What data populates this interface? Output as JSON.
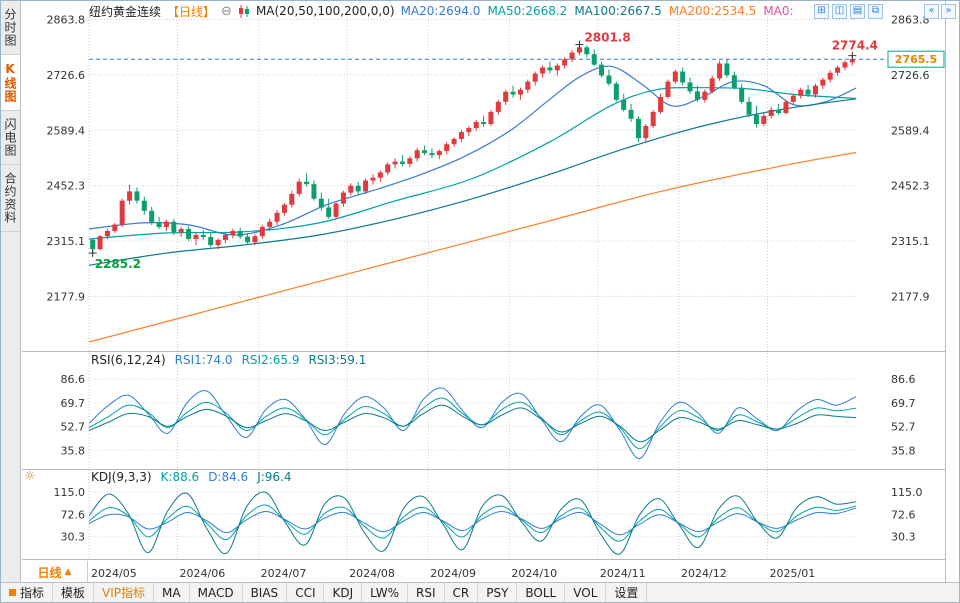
{
  "header": {
    "title": "纽约黄金连续",
    "period_tag": "【日线】",
    "ma_label": "MA(20,50,100,200,0,0)",
    "ma_values": [
      {
        "label": "MA20:2694.0",
        "color": "#3a7bd5"
      },
      {
        "label": "MA50:2668.2",
        "color": "#00a2a2"
      },
      {
        "label": "MA100:2667.5",
        "color": "#0b7a8a"
      },
      {
        "label": "MA200:2534.5",
        "color": "#ff7f27"
      },
      {
        "label": "MA0:",
        "color": "#e64ca6"
      }
    ],
    "layout_icons": [
      {
        "name": "grid-layout-icon",
        "glyph": "⊞"
      },
      {
        "name": "dual-pane-icon",
        "glyph": "◫"
      },
      {
        "name": "horizontal-panes-icon",
        "glyph": "▤"
      },
      {
        "name": "popup-window-icon",
        "glyph": "⧉"
      }
    ],
    "corner_icons": [
      {
        "name": "scroll-left-icon",
        "glyph": "«"
      },
      {
        "name": "scroll-right-icon",
        "glyph": "»"
      }
    ]
  },
  "icons": {
    "zoom_out": "⊖",
    "settings": "☼",
    "period_arrow": "▲"
  },
  "sidebar": {
    "items": [
      {
        "name": "time-chart",
        "label": "分时图",
        "selected": false
      },
      {
        "name": "kline-chart",
        "label": "K线图",
        "selected": true
      },
      {
        "name": "flash-chart",
        "label": "闪电图",
        "selected": false
      },
      {
        "name": "contract-info",
        "label": "合约资料",
        "selected": false
      }
    ]
  },
  "bottom": {
    "period_label": "日线",
    "tabs": [
      {
        "label": "指标",
        "icon": "orange-square-icon",
        "selected": true
      },
      {
        "label": "模板"
      },
      {
        "label": "VIP指标",
        "highlight": true
      },
      {
        "label": "MA"
      },
      {
        "label": "MACD"
      },
      {
        "label": "BIAS"
      },
      {
        "label": "CCI"
      },
      {
        "label": "KDJ"
      },
      {
        "label": "LW%"
      },
      {
        "label": "RSI"
      },
      {
        "label": "CR"
      },
      {
        "label": "PSY"
      },
      {
        "label": "BOLL"
      },
      {
        "label": "VOL"
      },
      {
        "label": "设置"
      }
    ]
  },
  "chart_data": {
    "type": "candlestick",
    "title": "纽约黄金连续 日线",
    "up_color": "#e0393e",
    "down_color": "#0d9e6e",
    "last_price": 2765.5,
    "price_axis": {
      "ticks": [
        2863.8,
        2726.6,
        2589.4,
        2452.3,
        2315.1,
        2177.9
      ],
      "range": [
        2055,
        2885
      ]
    },
    "months": [
      {
        "label": "2024/05",
        "index": 0
      },
      {
        "label": "2024/06",
        "index": 12
      },
      {
        "label": "2024/07",
        "index": 23
      },
      {
        "label": "2024/08",
        "index": 35
      },
      {
        "label": "2024/09",
        "index": 46
      },
      {
        "label": "2024/10",
        "index": 57
      },
      {
        "label": "2024/11",
        "index": 69
      },
      {
        "label": "2024/12",
        "index": 80
      },
      {
        "label": "2025/01",
        "index": 92
      }
    ],
    "annotations": {
      "peak": {
        "label": "2801.8",
        "index": 66,
        "color": "#e0393e"
      },
      "trough": {
        "label": "2285.2",
        "index": 0,
        "color": "#00a03c"
      },
      "latest_high": {
        "label": "2774.4",
        "color": "#e0393e"
      },
      "last_price_label": "2765.5",
      "price_box_border": "#00a2a2",
      "price_box_text": "#f08000",
      "dashed_line_color": "#2f7ed8"
    },
    "candles": [
      [
        2318,
        2322,
        2285.2,
        2295
      ],
      [
        2295,
        2330,
        2292,
        2327
      ],
      [
        2327,
        2345,
        2320,
        2340
      ],
      [
        2340,
        2360,
        2335,
        2356
      ],
      [
        2356,
        2420,
        2350,
        2415
      ],
      [
        2415,
        2454,
        2405,
        2438
      ],
      [
        2438,
        2448,
        2408,
        2415
      ],
      [
        2415,
        2425,
        2380,
        2390
      ],
      [
        2390,
        2400,
        2355,
        2362
      ],
      [
        2362,
        2375,
        2345,
        2350
      ],
      [
        2350,
        2368,
        2340,
        2363
      ],
      [
        2363,
        2370,
        2330,
        2336
      ],
      [
        2336,
        2350,
        2325,
        2345
      ],
      [
        2345,
        2352,
        2315,
        2320
      ],
      [
        2320,
        2338,
        2305,
        2330
      ],
      [
        2330,
        2342,
        2318,
        2325
      ],
      [
        2325,
        2336,
        2300,
        2305
      ],
      [
        2305,
        2322,
        2295,
        2318
      ],
      [
        2318,
        2335,
        2310,
        2330
      ],
      [
        2330,
        2345,
        2322,
        2340
      ],
      [
        2340,
        2348,
        2320,
        2326
      ],
      [
        2326,
        2335,
        2308,
        2312
      ],
      [
        2312,
        2332,
        2305,
        2327
      ],
      [
        2327,
        2355,
        2320,
        2350
      ],
      [
        2350,
        2370,
        2340,
        2363
      ],
      [
        2363,
        2392,
        2355,
        2385
      ],
      [
        2385,
        2410,
        2378,
        2405
      ],
      [
        2405,
        2440,
        2398,
        2432
      ],
      [
        2432,
        2470,
        2425,
        2462
      ],
      [
        2462,
        2483,
        2450,
        2456
      ],
      [
        2456,
        2465,
        2415,
        2420
      ],
      [
        2420,
        2435,
        2390,
        2398
      ],
      [
        2398,
        2420,
        2370,
        2375
      ],
      [
        2375,
        2412,
        2368,
        2408
      ],
      [
        2408,
        2440,
        2400,
        2435
      ],
      [
        2435,
        2458,
        2428,
        2452
      ],
      [
        2452,
        2462,
        2430,
        2438
      ],
      [
        2438,
        2470,
        2432,
        2465
      ],
      [
        2465,
        2480,
        2455,
        2472
      ],
      [
        2472,
        2490,
        2462,
        2485
      ],
      [
        2485,
        2510,
        2478,
        2505
      ],
      [
        2505,
        2520,
        2495,
        2512
      ],
      [
        2512,
        2528,
        2500,
        2506
      ],
      [
        2506,
        2525,
        2498,
        2520
      ],
      [
        2520,
        2546,
        2512,
        2540
      ],
      [
        2540,
        2552,
        2528,
        2533
      ],
      [
        2533,
        2545,
        2520,
        2528
      ],
      [
        2528,
        2542,
        2518,
        2538
      ],
      [
        2538,
        2560,
        2530,
        2555
      ],
      [
        2555,
        2572,
        2548,
        2568
      ],
      [
        2568,
        2590,
        2560,
        2585
      ],
      [
        2585,
        2600,
        2575,
        2595
      ],
      [
        2595,
        2615,
        2588,
        2610
      ],
      [
        2610,
        2625,
        2598,
        2605
      ],
      [
        2605,
        2640,
        2600,
        2635
      ],
      [
        2635,
        2665,
        2628,
        2660
      ],
      [
        2660,
        2690,
        2652,
        2685
      ],
      [
        2685,
        2700,
        2670,
        2678
      ],
      [
        2678,
        2695,
        2665,
        2690
      ],
      [
        2690,
        2715,
        2682,
        2710
      ],
      [
        2710,
        2735,
        2700,
        2730
      ],
      [
        2730,
        2750,
        2720,
        2745
      ],
      [
        2745,
        2760,
        2730,
        2738
      ],
      [
        2738,
        2755,
        2725,
        2750
      ],
      [
        2750,
        2770,
        2742,
        2765
      ],
      [
        2765,
        2788,
        2758,
        2782
      ],
      [
        2782,
        2801.8,
        2775,
        2795
      ],
      [
        2795,
        2800,
        2770,
        2778
      ],
      [
        2778,
        2790,
        2748,
        2752
      ],
      [
        2752,
        2760,
        2720,
        2725
      ],
      [
        2725,
        2740,
        2700,
        2705
      ],
      [
        2705,
        2710,
        2660,
        2665
      ],
      [
        2665,
        2680,
        2636,
        2640
      ],
      [
        2640,
        2655,
        2610,
        2618
      ],
      [
        2618,
        2625,
        2560,
        2570
      ],
      [
        2570,
        2605,
        2562,
        2600
      ],
      [
        2600,
        2640,
        2595,
        2635
      ],
      [
        2635,
        2680,
        2630,
        2672
      ],
      [
        2672,
        2715,
        2668,
        2710
      ],
      [
        2710,
        2740,
        2705,
        2735
      ],
      [
        2735,
        2745,
        2700,
        2708
      ],
      [
        2708,
        2720,
        2680,
        2686
      ],
      [
        2686,
        2700,
        2660,
        2665
      ],
      [
        2665,
        2690,
        2658,
        2685
      ],
      [
        2685,
        2725,
        2680,
        2718
      ],
      [
        2718,
        2762,
        2712,
        2755
      ],
      [
        2755,
        2765,
        2720,
        2726
      ],
      [
        2726,
        2735,
        2690,
        2695
      ],
      [
        2695,
        2705,
        2655,
        2660
      ],
      [
        2660,
        2672,
        2622,
        2628
      ],
      [
        2628,
        2650,
        2596,
        2605
      ],
      [
        2605,
        2632,
        2600,
        2625
      ],
      [
        2625,
        2648,
        2618,
        2640
      ],
      [
        2640,
        2655,
        2628,
        2632
      ],
      [
        2632,
        2665,
        2630,
        2660
      ],
      [
        2660,
        2680,
        2652,
        2675
      ],
      [
        2675,
        2695,
        2668,
        2690
      ],
      [
        2690,
        2702,
        2672,
        2678
      ],
      [
        2678,
        2705,
        2670,
        2700
      ],
      [
        2700,
        2720,
        2692,
        2715
      ],
      [
        2715,
        2738,
        2708,
        2732
      ],
      [
        2732,
        2750,
        2725,
        2745
      ],
      [
        2745,
        2762,
        2738,
        2758
      ],
      [
        2758,
        2774.4,
        2750,
        2765.5
      ]
    ],
    "ma_lines": [
      {
        "name": "MA20",
        "color": "#3a7bd5",
        "points": [
          [
            0,
            2345
          ],
          [
            0.07,
            2360
          ],
          [
            0.13,
            2355
          ],
          [
            0.19,
            2330
          ],
          [
            0.25,
            2355
          ],
          [
            0.31,
            2405
          ],
          [
            0.37,
            2440
          ],
          [
            0.43,
            2478
          ],
          [
            0.49,
            2525
          ],
          [
            0.55,
            2590
          ],
          [
            0.6,
            2665
          ],
          [
            0.64,
            2722
          ],
          [
            0.68,
            2748
          ],
          [
            0.72,
            2705
          ],
          [
            0.76,
            2650
          ],
          [
            0.8,
            2672
          ],
          [
            0.84,
            2710
          ],
          [
            0.88,
            2700
          ],
          [
            0.92,
            2652
          ],
          [
            0.96,
            2660
          ],
          [
            1,
            2694
          ]
        ]
      },
      {
        "name": "MA50",
        "color": "#00a2a2",
        "points": [
          [
            0,
            2320
          ],
          [
            0.1,
            2335
          ],
          [
            0.2,
            2338
          ],
          [
            0.3,
            2360
          ],
          [
            0.4,
            2415
          ],
          [
            0.5,
            2470
          ],
          [
            0.6,
            2560
          ],
          [
            0.68,
            2650
          ],
          [
            0.74,
            2690
          ],
          [
            0.8,
            2695
          ],
          [
            0.86,
            2692
          ],
          [
            0.92,
            2678
          ],
          [
            1,
            2668.2
          ]
        ]
      },
      {
        "name": "MA100",
        "color": "#0b7a8a",
        "points": [
          [
            0,
            2255
          ],
          [
            0.1,
            2285
          ],
          [
            0.2,
            2305
          ],
          [
            0.3,
            2330
          ],
          [
            0.4,
            2370
          ],
          [
            0.5,
            2420
          ],
          [
            0.6,
            2480
          ],
          [
            0.7,
            2545
          ],
          [
            0.8,
            2600
          ],
          [
            0.9,
            2640
          ],
          [
            1,
            2667.5
          ]
        ]
      },
      {
        "name": "MA200",
        "color": "#ff7f27",
        "points": [
          [
            0,
            2065
          ],
          [
            0.15,
            2140
          ],
          [
            0.3,
            2215
          ],
          [
            0.45,
            2290
          ],
          [
            0.6,
            2365
          ],
          [
            0.75,
            2440
          ],
          [
            0.9,
            2500
          ],
          [
            1,
            2534.5
          ]
        ]
      }
    ],
    "rsi": {
      "label": "RSI(6,12,24)",
      "range": [
        24,
        98
      ],
      "ticks": [
        86.6,
        69.7,
        52.7,
        35.8
      ],
      "series": [
        {
          "name": "RSI1",
          "label": "RSI1:74.0",
          "color": "#2f7ed8",
          "values": [
            55,
            68,
            75,
            62,
            48,
            70,
            78,
            60,
            45,
            65,
            72,
            58,
            40,
            62,
            74,
            66,
            50,
            72,
            80,
            64,
            52,
            70,
            76,
            58,
            42,
            60,
            68,
            50,
            30,
            55,
            70,
            62,
            48,
            66,
            58,
            50,
            64,
            72,
            68,
            74
          ]
        },
        {
          "name": "RSI2",
          "label": "RSI2:65.9",
          "color": "#00a2a2",
          "values": [
            52,
            60,
            68,
            63,
            52,
            63,
            70,
            62,
            50,
            60,
            66,
            58,
            47,
            58,
            67,
            62,
            53,
            66,
            73,
            62,
            54,
            65,
            70,
            59,
            47,
            57,
            63,
            52,
            37,
            52,
            64,
            59,
            50,
            61,
            56,
            51,
            59,
            66,
            64,
            65.9
          ]
        },
        {
          "name": "RSI3",
          "label": "RSI3:59.1",
          "color": "#0b7a8a",
          "values": [
            50,
            56,
            62,
            60,
            53,
            60,
            65,
            60,
            52,
            57,
            62,
            57,
            50,
            56,
            62,
            59,
            53,
            62,
            68,
            60,
            54,
            61,
            66,
            58,
            49,
            55,
            60,
            53,
            42,
            50,
            59,
            56,
            51,
            57,
            54,
            51,
            55,
            61,
            60,
            59.1
          ]
        }
      ]
    },
    "kdj": {
      "label": "KDJ(9,3,3)",
      "range": [
        -10,
        130
      ],
      "ticks": [
        115.0,
        72.6,
        30.3
      ],
      "series": [
        {
          "name": "K",
          "label": "K:88.6",
          "color": "#00a2a2",
          "values": [
            60,
            85,
            70,
            30,
            65,
            88,
            55,
            25,
            70,
            90,
            60,
            35,
            75,
            85,
            50,
            28,
            68,
            86,
            58,
            30,
            72,
            88,
            62,
            38,
            70,
            84,
            48,
            22,
            60,
            82,
            55,
            30,
            66,
            85,
            58,
            40,
            70,
            86,
            80,
            88.6
          ]
        },
        {
          "name": "D",
          "label": "D:84.6",
          "color": "#2f7ed8",
          "values": [
            55,
            72,
            68,
            45,
            58,
            76,
            60,
            38,
            62,
            78,
            62,
            45,
            66,
            76,
            56,
            40,
            60,
            76,
            60,
            42,
            64,
            78,
            64,
            46,
            64,
            76,
            54,
            34,
            54,
            72,
            56,
            40,
            58,
            74,
            58,
            46,
            62,
            76,
            74,
            84.6
          ]
        },
        {
          "name": "J",
          "label": "J:96.4",
          "color": "#0b7a8a",
          "values": [
            70,
            111,
            74,
            0,
            79,
            112,
            45,
            -1,
            86,
            114,
            56,
            15,
            93,
            103,
            38,
            4,
            84,
            106,
            54,
            6,
            88,
            108,
            58,
            22,
            82,
            100,
            36,
            -2,
            72,
            102,
            53,
            10,
            82,
            107,
            58,
            28,
            86,
            106,
            92,
            96.4
          ]
        }
      ]
    }
  }
}
